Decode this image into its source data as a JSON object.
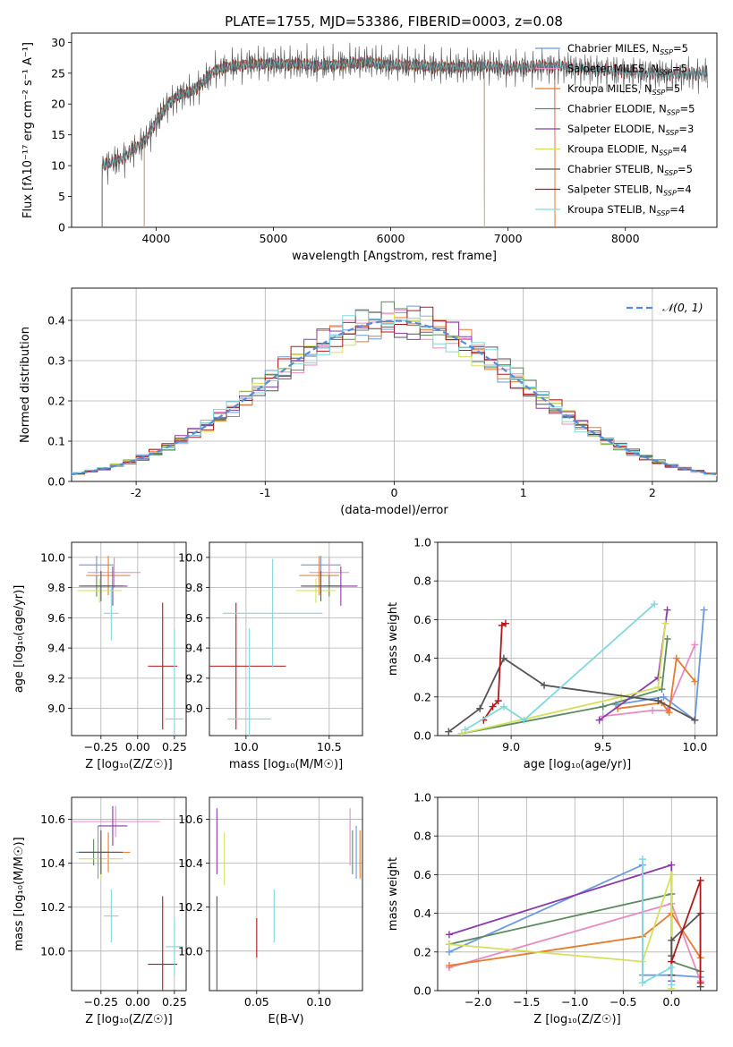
{
  "figure": {
    "title": "PLATE=1755, MJD=53386, FIBERID=0003, z=0.08"
  },
  "chart_data": [
    {
      "id": "spectrum",
      "type": "line",
      "xlabel": "wavelength [Angstrom, rest frame]",
      "ylabel": "Flux [fλ10⁻¹⁷ erg cm⁻² s⁻¹ A⁻¹]",
      "xlim": [
        3280,
        8780
      ],
      "ylim": [
        0,
        31.5
      ],
      "xticks": [
        4000,
        5000,
        6000,
        7000,
        8000
      ],
      "yticks": [
        0,
        5,
        10,
        15,
        20,
        25,
        30
      ],
      "grid": false,
      "legend": "upper right",
      "continuum": {
        "x": [
          3540,
          3700,
          3800,
          3900,
          4000,
          4100,
          4200,
          4300,
          4400,
          4500,
          4600,
          4800,
          5000,
          5200,
          5400,
          5600,
          5800,
          6000,
          6200,
          6400,
          6600,
          6800,
          7000,
          7200,
          7400,
          7600,
          7800,
          8000,
          8200,
          8400,
          8700
        ],
        "y": [
          10,
          11,
          12.5,
          14,
          17,
          20,
          21.5,
          22,
          23.5,
          25.5,
          26,
          26.5,
          26.5,
          26.5,
          26.2,
          26.5,
          26.8,
          26.3,
          26.3,
          26.0,
          26.0,
          26.2,
          25.8,
          26.0,
          26.2,
          25.8,
          25.5,
          25.2,
          25.0,
          24.8,
          25.0
        ]
      },
      "series": [
        {
          "name": "Chabrier MILES, N_SSP=5",
          "color": "#6b9ae0",
          "start": 3540,
          "end": 7400
        },
        {
          "name": "Salpeter MILES, N_SSP=5",
          "color": "#e88ac2",
          "start": 3540,
          "end": 7400
        },
        {
          "name": "Kroupa MILES, N_SSP=5",
          "color": "#e87a2a",
          "start": 3540,
          "end": 7400
        },
        {
          "name": "Chabrier ELODIE, N_SSP=5",
          "color": "#5a8a5e",
          "start": 3900,
          "end": 6800
        },
        {
          "name": "Salpeter ELODIE, N_SSP=3",
          "color": "#8a3aaa",
          "start": 3900,
          "end": 6800
        },
        {
          "name": "Kroupa ELODIE, N_SSP=4",
          "color": "#d4e05a",
          "start": 3900,
          "end": 6800
        },
        {
          "name": "Chabrier STELIB, N_SSP=5",
          "color": "#555555",
          "start": 3540,
          "end": 8700
        },
        {
          "name": "Salpeter STELIB, N_SSP=4",
          "color": "#b01a1a",
          "start": 3540,
          "end": 8700
        },
        {
          "name": "Kroupa STELIB, N_SSP=4",
          "color": "#80d8e0",
          "start": 3540,
          "end": 8700
        }
      ],
      "legend_entries": [
        {
          "pre": "Chabrier MILES, N",
          "sub": "SSP",
          "post": "=5"
        },
        {
          "pre": "Salpeter MILES, N",
          "sub": "SSP",
          "post": "=5"
        },
        {
          "pre": "Kroupa MILES, N",
          "sub": "SSP",
          "post": "=5"
        },
        {
          "pre": "Chabrier ELODIE, N",
          "sub": "SSP",
          "post": "=5"
        },
        {
          "pre": "Salpeter ELODIE, N",
          "sub": "SSP",
          "post": "=3"
        },
        {
          "pre": "Kroupa ELODIE, N",
          "sub": "SSP",
          "post": "=4"
        },
        {
          "pre": "Chabrier STELIB, N",
          "sub": "SSP",
          "post": "=5"
        },
        {
          "pre": "Salpeter STELIB, N",
          "sub": "SSP",
          "post": "=4"
        },
        {
          "pre": "Kroupa STELIB, N",
          "sub": "SSP",
          "post": "=4"
        }
      ]
    },
    {
      "id": "residuals",
      "type": "histogram",
      "xlabel": "(data-model)/error",
      "ylabel": "Normed distribution",
      "xlim": [
        -2.5,
        2.5
      ],
      "ylim": [
        0,
        0.48
      ],
      "xticks": [
        -2,
        -1,
        0,
        1,
        2
      ],
      "yticks": [
        0.0,
        0.1,
        0.2,
        0.3,
        0.4
      ],
      "grid": true,
      "bin_width": 0.1,
      "legend": "upper right",
      "gaussian": {
        "name": "𝒩(0, 1)",
        "mean": 0,
        "sigma": 1
      }
    },
    {
      "id": "z_age",
      "type": "errorbar",
      "xlabel": "Z [log₁₀(Z/Z☉)]",
      "ylabel": "age  [log₁₀(age/yr)]",
      "xlim": [
        -0.45,
        0.33
      ],
      "ylim": [
        8.82,
        10.1
      ],
      "xticks": [
        -0.25,
        0.0,
        0.25
      ],
      "xticklabels": [
        "−0.25",
        "0.00",
        "0.25"
      ],
      "yticks": [
        9.0,
        9.2,
        9.4,
        9.6,
        9.8,
        10.0
      ],
      "grid": true,
      "points": [
        {
          "x": -0.28,
          "xerr": 0.12,
          "y": 9.95,
          "yerr": 0.06
        },
        {
          "x": -0.16,
          "xerr": 0.18,
          "y": 9.9,
          "yerr": 0.1
        },
        {
          "x": -0.2,
          "xerr": 0.15,
          "y": 9.88,
          "yerr": 0.13
        },
        {
          "x": -0.28,
          "xerr": 0.1,
          "y": 9.81,
          "yerr": 0.07
        },
        {
          "x": -0.17,
          "xerr": 0.1,
          "y": 9.81,
          "yerr": 0.13
        },
        {
          "x": -0.26,
          "xerr": 0.15,
          "y": 9.78,
          "yerr": 0.08
        },
        {
          "x": -0.25,
          "xerr": 0.15,
          "y": 9.81,
          "yerr": 0.1
        },
        {
          "x": 0.17,
          "xerr": 0.1,
          "y": 9.28,
          "yerr": 0.42
        },
        {
          "x": 0.25,
          "xerr": 0.06,
          "y": 8.93,
          "yerr": 0.6
        },
        {
          "x": -0.18,
          "xerr": 0.05,
          "y": 9.63,
          "yerr": 0.18
        }
      ]
    },
    {
      "id": "mass_age",
      "type": "errorbar",
      "xlabel": "mass [log₁₀(M/M☉)]",
      "ylabel": "",
      "xlim": [
        9.78,
        10.7
      ],
      "ylim": [
        8.82,
        10.1
      ],
      "xticks": [
        10.0,
        10.5
      ],
      "xticklabels": [
        "10.0",
        "10.5"
      ],
      "yticks": [
        9.0,
        9.2,
        9.4,
        9.6,
        9.8,
        10.0
      ],
      "grid": true,
      "points": [
        {
          "x": 10.45,
          "xerr": 0.12,
          "y": 9.95,
          "yerr": 0.06
        },
        {
          "x": 10.5,
          "xerr": 0.12,
          "y": 9.9,
          "yerr": 0.1
        },
        {
          "x": 10.44,
          "xerr": 0.12,
          "y": 9.88,
          "yerr": 0.13
        },
        {
          "x": 10.5,
          "xerr": 0.08,
          "y": 9.81,
          "yerr": 0.07
        },
        {
          "x": 10.57,
          "xerr": 0.1,
          "y": 9.81,
          "yerr": 0.13
        },
        {
          "x": 10.42,
          "xerr": 0.12,
          "y": 9.78,
          "yerr": 0.08
        },
        {
          "x": 10.45,
          "xerr": 0.12,
          "y": 9.81,
          "yerr": 0.1
        },
        {
          "x": 9.94,
          "xerr": 0.3,
          "y": 9.28,
          "yerr": 0.42
        },
        {
          "x": 10.02,
          "xerr": 0.13,
          "y": 8.93,
          "yerr": 0.6
        },
        {
          "x": 10.16,
          "xerr": 0.3,
          "y": 9.63,
          "yerr": 0.36
        }
      ]
    },
    {
      "id": "age_weight",
      "type": "line",
      "xlabel": "age  [log₁₀(age/yr)]",
      "ylabel": "mass weight",
      "xlim": [
        8.6,
        10.12
      ],
      "ylim": [
        0,
        1.0
      ],
      "xticks": [
        9.0,
        9.5,
        10.0
      ],
      "xticklabels": [
        "9.0",
        "9.5",
        "10.0"
      ],
      "yticks": [
        0.0,
        0.2,
        0.4,
        0.6,
        0.8,
        1.0
      ],
      "grid": true,
      "series": [
        {
          "color": "#6b9ae0",
          "x": [
            9.57,
            9.83,
            10.0,
            10.05
          ],
          "y": [
            0.16,
            0.2,
            0.08,
            0.65
          ]
        },
        {
          "color": "#e88ac2",
          "x": [
            9.5,
            9.77,
            9.85,
            10.0
          ],
          "y": [
            0.1,
            0.13,
            0.13,
            0.47
          ]
        },
        {
          "color": "#e87a2a",
          "x": [
            9.58,
            9.82,
            9.86,
            9.9,
            10.0
          ],
          "y": [
            0.14,
            0.17,
            0.12,
            0.4,
            0.28
          ]
        },
        {
          "color": "#5a8a5e",
          "x": [
            8.73,
            9.5,
            9.82,
            9.85
          ],
          "y": [
            0.01,
            0.15,
            0.24,
            0.5
          ]
        },
        {
          "color": "#8a3aaa",
          "x": [
            9.48,
            9.8,
            9.85
          ],
          "y": [
            0.08,
            0.3,
            0.65
          ]
        },
        {
          "color": "#d4e05a",
          "x": [
            8.73,
            9.6,
            9.8,
            9.84
          ],
          "y": [
            0.01,
            0.2,
            0.25,
            0.58
          ]
        },
        {
          "color": "#555555",
          "x": [
            8.66,
            8.83,
            8.96,
            9.18,
            9.8,
            10.0
          ],
          "y": [
            0.02,
            0.14,
            0.4,
            0.26,
            0.18,
            0.08
          ]
        },
        {
          "color": "#b01a1a",
          "x": [
            8.85,
            8.9,
            8.93,
            8.95,
            8.97
          ],
          "y": [
            0.08,
            0.15,
            0.18,
            0.57,
            0.58
          ]
        },
        {
          "color": "#80d8e0",
          "x": [
            8.75,
            8.96,
            9.07,
            9.78
          ],
          "y": [
            0.03,
            0.15,
            0.08,
            0.68
          ]
        }
      ]
    },
    {
      "id": "z_mass",
      "type": "errorbar",
      "xlabel": "Z [log₁₀(Z/Z☉)]",
      "ylabel": "mass [log₁₀(M/M☉)]",
      "xlim": [
        -0.45,
        0.33
      ],
      "ylim": [
        9.82,
        10.7
      ],
      "xticks": [
        -0.25,
        0.0,
        0.25
      ],
      "xticklabels": [
        "−0.25",
        "0.00",
        "0.25"
      ],
      "yticks": [
        10.0,
        10.2,
        10.4,
        10.6
      ],
      "grid": true,
      "points": [
        {
          "x": -0.27,
          "xerr": 0.15,
          "y": 10.45,
          "yerr": 0.12
        },
        {
          "x": -0.15,
          "xerr": 0.3,
          "y": 10.59,
          "yerr": 0.07
        },
        {
          "x": -0.2,
          "xerr": 0.15,
          "y": 10.45,
          "yerr": 0.09
        },
        {
          "x": -0.3,
          "xerr": 0.1,
          "y": 10.45,
          "yerr": 0.06
        },
        {
          "x": -0.17,
          "xerr": 0.1,
          "y": 10.57,
          "yerr": 0.09
        },
        {
          "x": -0.25,
          "xerr": 0.15,
          "y": 10.42,
          "yerr": 0.09
        },
        {
          "x": -0.25,
          "xerr": 0.15,
          "y": 10.45,
          "yerr": 0.1
        },
        {
          "x": 0.17,
          "xerr": 0.1,
          "y": 9.94,
          "yerr": 0.31
        },
        {
          "x": 0.25,
          "xerr": 0.06,
          "y": 10.02,
          "yerr": 0.13
        },
        {
          "x": -0.18,
          "xerr": 0.05,
          "y": 10.16,
          "yerr": 0.12
        }
      ]
    },
    {
      "id": "ebv_mass",
      "type": "errorbar",
      "xlabel": "E(B-V)",
      "ylabel": "",
      "xlim": [
        0.012,
        0.135
      ],
      "ylim": [
        9.82,
        10.7
      ],
      "xticks": [
        0.05,
        0.1
      ],
      "xticklabels": [
        "0.05",
        "0.10"
      ],
      "yticks": [
        10.0,
        10.2,
        10.4,
        10.6
      ],
      "grid": true,
      "points": [
        {
          "x": 0.13,
          "xerr": 0,
          "y": 10.45,
          "yerr": 0.12
        },
        {
          "x": 0.125,
          "xerr": 0,
          "y": 10.52,
          "yerr": 0.13
        },
        {
          "x": 0.133,
          "xerr": 0,
          "y": 10.44,
          "yerr": 0.11
        },
        {
          "x": 0.127,
          "xerr": 0,
          "y": 10.45,
          "yerr": 0.1
        },
        {
          "x": 0.018,
          "xerr": 0,
          "y": 10.5,
          "yerr": 0.15
        },
        {
          "x": 0.024,
          "xerr": 0,
          "y": 10.42,
          "yerr": 0.12
        },
        {
          "x": 0.018,
          "xerr": 0,
          "y": 10.0,
          "yerr": 0.25
        },
        {
          "x": 0.05,
          "xerr": 0,
          "y": 10.06,
          "yerr": 0.09
        },
        {
          "x": 0.064,
          "xerr": 0,
          "y": 10.16,
          "yerr": 0.12
        }
      ]
    },
    {
      "id": "z_weight",
      "type": "line",
      "xlabel": "Z [log₁₀(Z/Z☉)]",
      "ylabel": "mass weight",
      "xlim": [
        -2.42,
        0.47
      ],
      "ylim": [
        0,
        1.0
      ],
      "xticks": [
        -2.0,
        -1.5,
        -1.0,
        -0.5,
        0.0
      ],
      "xticklabels": [
        "−2.0",
        "−1.5",
        "−1.0",
        "−0.5",
        "0.0"
      ],
      "yticks": [
        0.0,
        0.2,
        0.4,
        0.6,
        0.8,
        1.0
      ],
      "grid": true,
      "series": [
        {
          "color": "#6b9ae0",
          "x": [
            -2.3,
            -0.3,
            -0.3,
            0.0,
            0.3
          ],
          "y": [
            0.2,
            0.65,
            0.08,
            0.08,
            0.07
          ]
        },
        {
          "color": "#e88ac2",
          "x": [
            -2.3,
            0.0,
            0.3
          ],
          "y": [
            0.12,
            0.45,
            0.05
          ]
        },
        {
          "color": "#e87a2a",
          "x": [
            -2.3,
            -0.3,
            0.0,
            0.3
          ],
          "y": [
            0.13,
            0.28,
            0.4,
            0.17
          ]
        },
        {
          "color": "#5a8a5e",
          "x": [
            -2.3,
            0.0,
            0.0,
            0.3
          ],
          "y": [
            0.24,
            0.5,
            0.15,
            0.1
          ]
        },
        {
          "color": "#8a3aaa",
          "x": [
            -2.3,
            0.0,
            0.0
          ],
          "y": [
            0.29,
            0.65,
            0.05
          ]
        },
        {
          "color": "#d4e05a",
          "x": [
            -2.3,
            -0.3,
            0.0,
            0.0
          ],
          "y": [
            0.24,
            0.15,
            0.6,
            0.01
          ]
        },
        {
          "color": "#555555",
          "x": [
            0.0,
            0.0,
            0.3,
            0.3
          ],
          "y": [
            0.18,
            0.26,
            0.4,
            0.02
          ]
        },
        {
          "color": "#b01a1a",
          "x": [
            0.0,
            0.0,
            0.3,
            0.3
          ],
          "y": [
            0.08,
            0.15,
            0.57,
            0.04
          ]
        },
        {
          "color": "#80d8e0",
          "x": [
            -0.3,
            -0.3,
            0.0,
            0.0
          ],
          "y": [
            0.68,
            0.04,
            0.12,
            0.03
          ]
        }
      ]
    }
  ]
}
